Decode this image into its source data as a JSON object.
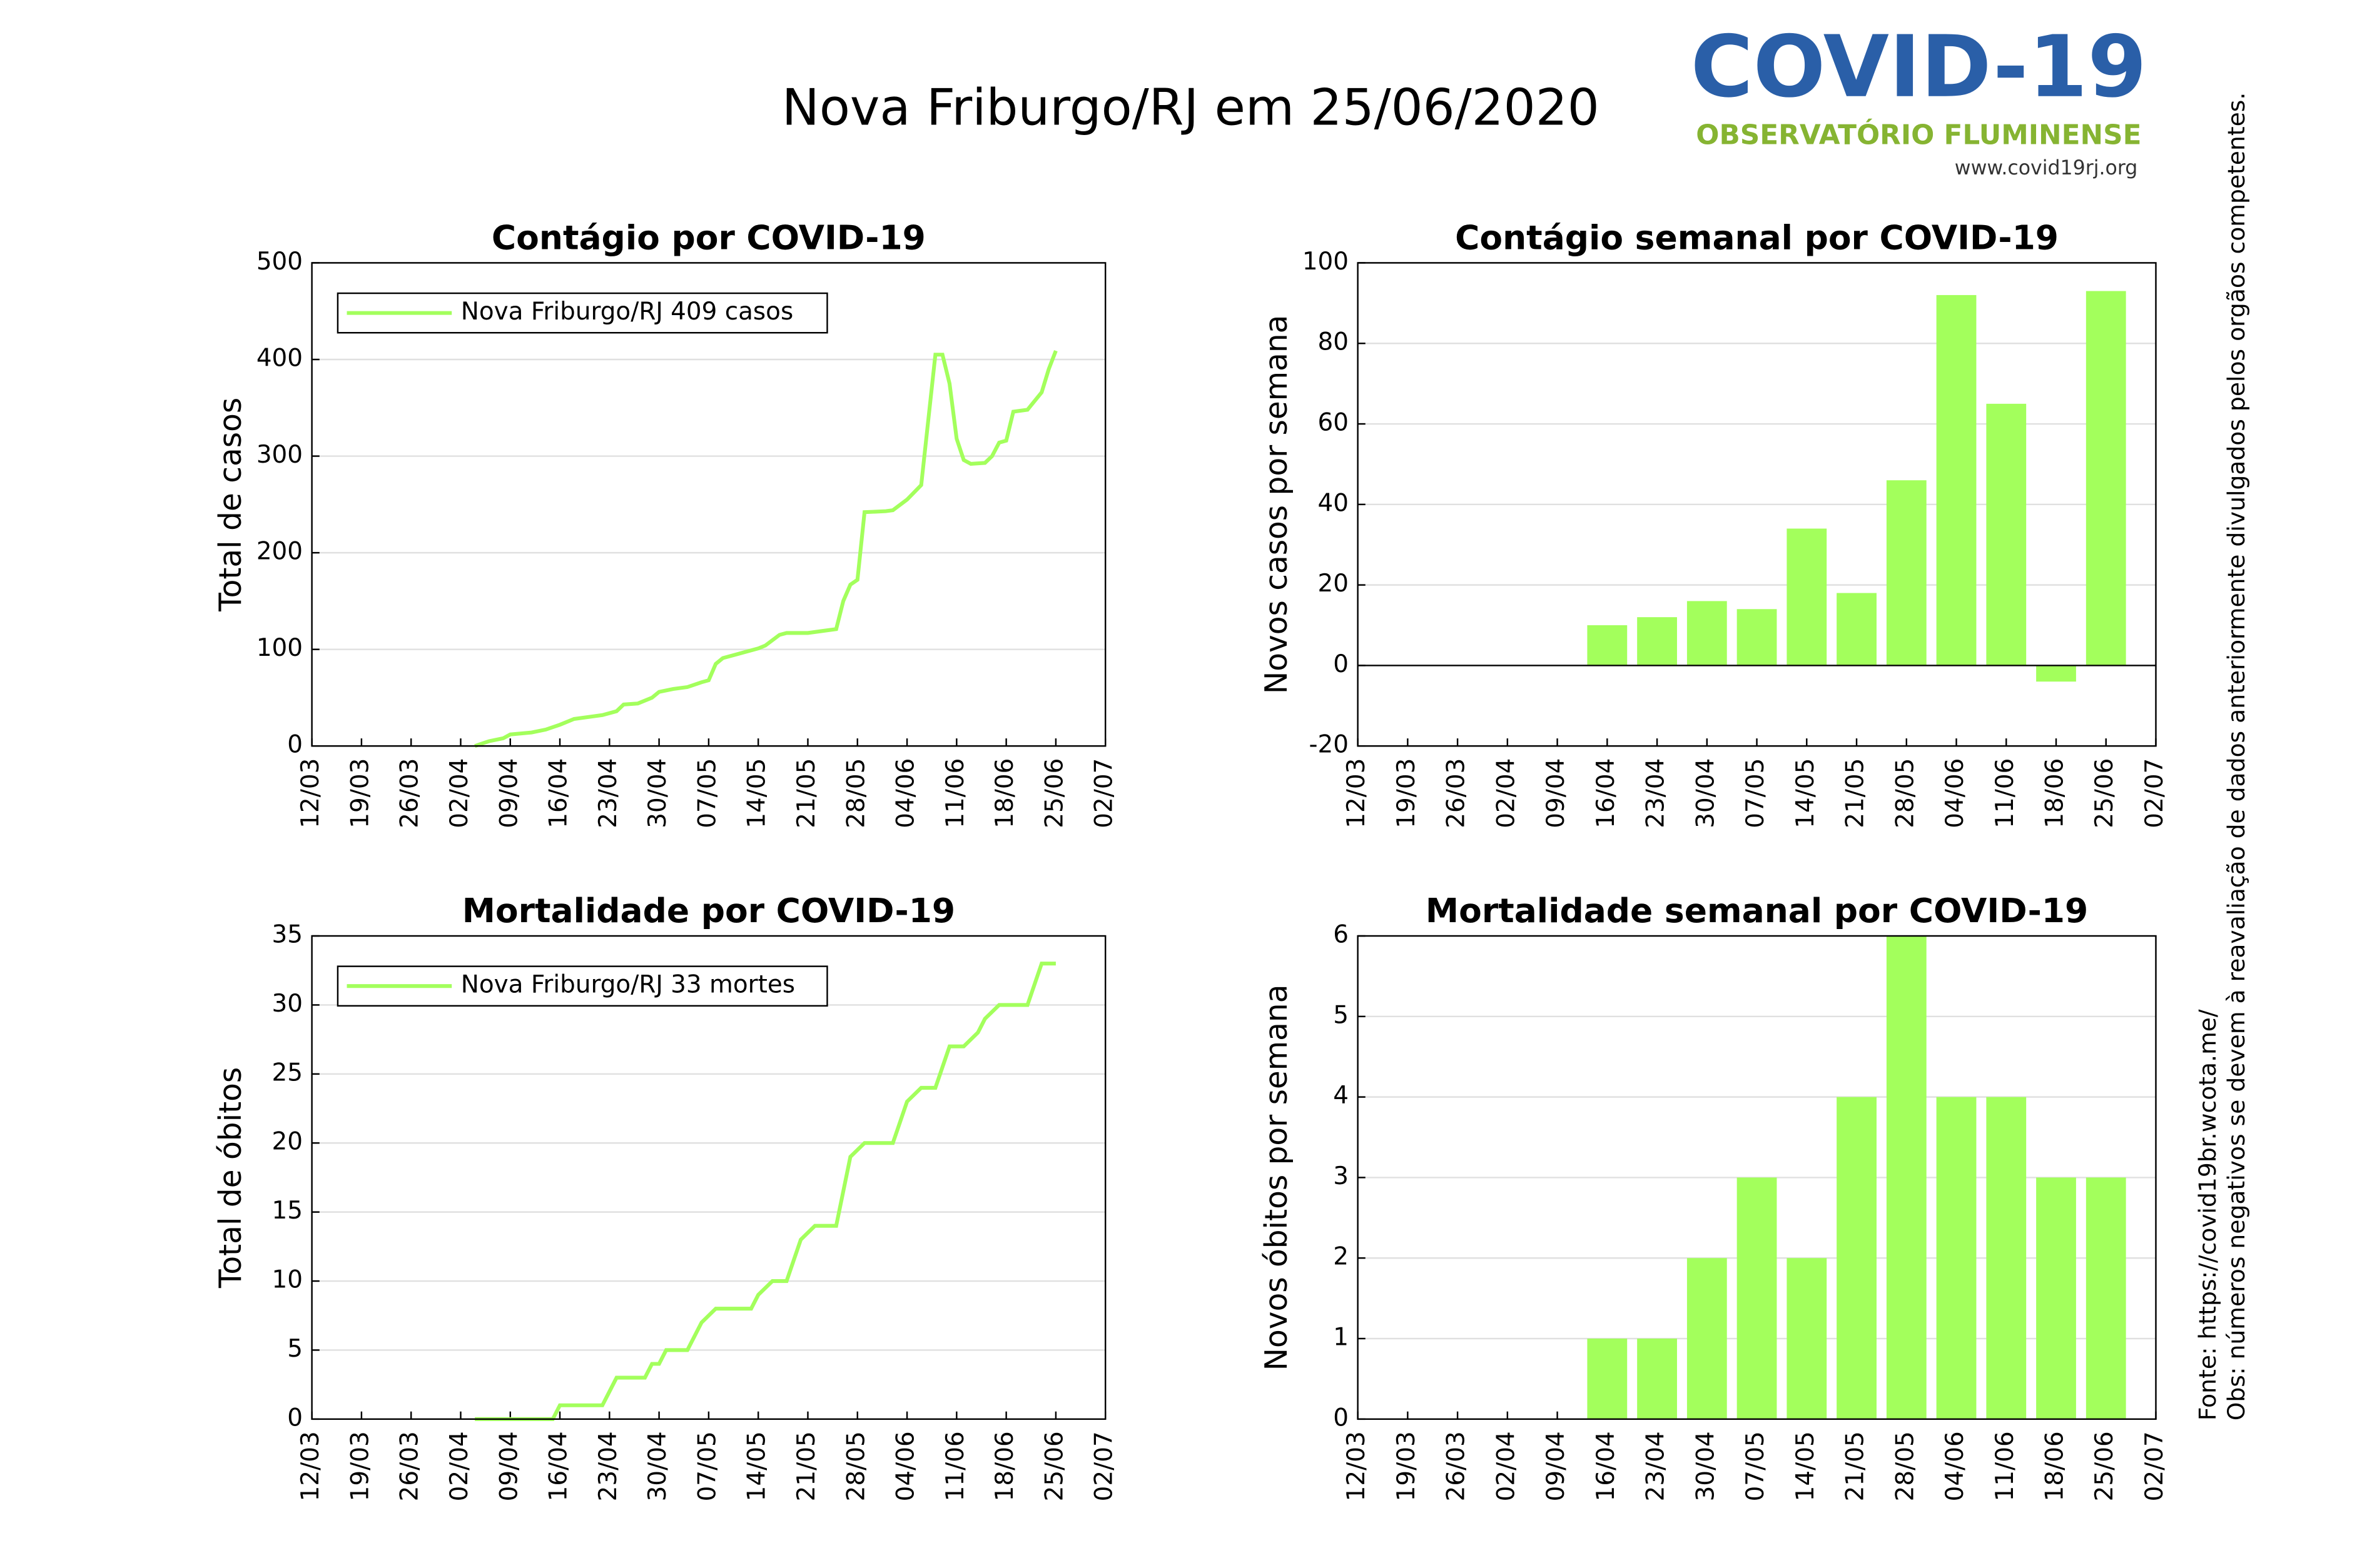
{
  "title": "Nova Friburgo/RJ em 25/06/2020",
  "logo": {
    "name": "COVID-19",
    "subtitle": "OBSERVATÓRIO FLUMINENSE",
    "url": "www.covid19rj.org"
  },
  "source": "Fonte: https://covid19br.wcota.me/",
  "note": "Obs: números negativos se devem à reavaliação de dados anteriormente divulgados pelos orgãos competentes.",
  "chart_data": [
    {
      "type": "line",
      "title": "Contágio por COVID-19",
      "ylabel": "Total de casos",
      "x": [
        "04/04",
        "06/04",
        "08/04",
        "09/04",
        "12/04",
        "14/04",
        "16/04",
        "18/04",
        "20/04",
        "22/04",
        "24/04",
        "25/04",
        "27/04",
        "29/04",
        "30/04",
        "02/05",
        "04/05",
        "06/05",
        "07/05",
        "08/05",
        "09/05",
        "11/05",
        "12/05",
        "14/05",
        "15/05",
        "17/05",
        "18/05",
        "21/05",
        "23/05",
        "25/05",
        "26/05",
        "27/05",
        "28/05",
        "29/05",
        "01/06",
        "02/06",
        "04/06",
        "06/06",
        "08/06",
        "09/06",
        "10/06",
        "11/06",
        "12/06",
        "13/06",
        "15/06",
        "16/06",
        "17/06",
        "18/06",
        "19/06",
        "21/06",
        "23/06",
        "24/06",
        "25/06"
      ],
      "series": [
        {
          "name": "Nova Friburgo/RJ  409 casos",
          "color": "#a3ff5c",
          "values": [
            0,
            5,
            8,
            12,
            14,
            17,
            22,
            28,
            30,
            32,
            36,
            43,
            44,
            50,
            56,
            59,
            61,
            66,
            68,
            85,
            91,
            95,
            97,
            101,
            104,
            115,
            117,
            117,
            119,
            121,
            150,
            167,
            172,
            242,
            243,
            244,
            255,
            270,
            405,
            405,
            375,
            318,
            296,
            292,
            293,
            300,
            314,
            316,
            346,
            348,
            366,
            390,
            409
          ]
        }
      ],
      "xlim": [
        "12/03",
        "02/07"
      ],
      "xticks": [
        "12/03",
        "19/03",
        "26/03",
        "02/04",
        "09/04",
        "16/04",
        "23/04",
        "30/04",
        "07/05",
        "14/05",
        "21/05",
        "28/05",
        "04/06",
        "11/06",
        "18/06",
        "25/06",
        "02/07"
      ],
      "ylim": [
        0,
        500
      ],
      "yticks": [
        0,
        100,
        200,
        300,
        400,
        500
      ],
      "grid": true,
      "legend": "upper left"
    },
    {
      "type": "bar",
      "title": "Contágio semanal por COVID-19",
      "ylabel": "Novos casos por semana",
      "x": [
        "16/04",
        "23/04",
        "30/04",
        "07/05",
        "14/05",
        "21/05",
        "28/05",
        "04/06",
        "11/06",
        "18/06",
        "25/06"
      ],
      "values": [
        10,
        12,
        16,
        14,
        34,
        18,
        46,
        92,
        65,
        -4,
        93
      ],
      "color": "#a3ff5c",
      "xlim": [
        "12/03",
        "02/07"
      ],
      "xticks": [
        "12/03",
        "19/03",
        "26/03",
        "02/04",
        "09/04",
        "16/04",
        "23/04",
        "30/04",
        "07/05",
        "14/05",
        "21/05",
        "28/05",
        "04/06",
        "11/06",
        "18/06",
        "25/06",
        "02/07"
      ],
      "ylim": [
        -20,
        100
      ],
      "yticks": [
        -20,
        0,
        20,
        40,
        60,
        80,
        100
      ],
      "grid": true
    },
    {
      "type": "line",
      "title": "Mortalidade por COVID-19",
      "ylabel": "Total de óbitos",
      "x": [
        "04/04",
        "15/04",
        "16/04",
        "22/04",
        "23/04",
        "24/04",
        "28/04",
        "29/04",
        "30/04",
        "01/05",
        "04/05",
        "06/05",
        "08/05",
        "13/05",
        "14/05",
        "16/05",
        "18/05",
        "20/05",
        "22/05",
        "25/05",
        "27/05",
        "29/05",
        "02/06",
        "04/06",
        "06/06",
        "08/06",
        "10/06",
        "12/06",
        "14/06",
        "15/06",
        "17/06",
        "21/06",
        "23/06",
        "25/06"
      ],
      "series": [
        {
          "name": "Nova Friburgo/RJ  33 mortes",
          "color": "#a3ff5c",
          "values": [
            0,
            0,
            1,
            1,
            2,
            3,
            3,
            4,
            4,
            5,
            5,
            7,
            8,
            8,
            9,
            10,
            10,
            13,
            14,
            14,
            19,
            20,
            20,
            23,
            24,
            24,
            27,
            27,
            28,
            29,
            30,
            30,
            33,
            33
          ]
        }
      ],
      "xlim": [
        "12/03",
        "02/07"
      ],
      "xticks": [
        "12/03",
        "19/03",
        "26/03",
        "02/04",
        "09/04",
        "16/04",
        "23/04",
        "30/04",
        "07/05",
        "14/05",
        "21/05",
        "28/05",
        "04/06",
        "11/06",
        "18/06",
        "25/06",
        "02/07"
      ],
      "ylim": [
        0,
        35
      ],
      "yticks": [
        0,
        5,
        10,
        15,
        20,
        25,
        30,
        35
      ],
      "grid": true,
      "legend": "upper left"
    },
    {
      "type": "bar",
      "title": "Mortalidade semanal por COVID-19",
      "ylabel": "Novos óbitos por semana",
      "x": [
        "16/04",
        "23/04",
        "30/04",
        "07/05",
        "14/05",
        "21/05",
        "28/05",
        "04/06",
        "11/06",
        "18/06",
        "25/06"
      ],
      "values": [
        1,
        1,
        2,
        3,
        2,
        4,
        6,
        4,
        4,
        3,
        3
      ],
      "color": "#a3ff5c",
      "xlim": [
        "12/03",
        "02/07"
      ],
      "xticks": [
        "12/03",
        "19/03",
        "26/03",
        "02/04",
        "09/04",
        "16/04",
        "23/04",
        "30/04",
        "07/05",
        "14/05",
        "21/05",
        "28/05",
        "04/06",
        "11/06",
        "18/06",
        "25/06",
        "02/07"
      ],
      "ylim": [
        0,
        6
      ],
      "yticks": [
        0,
        1,
        2,
        3,
        4,
        5,
        6
      ],
      "grid": true
    }
  ]
}
